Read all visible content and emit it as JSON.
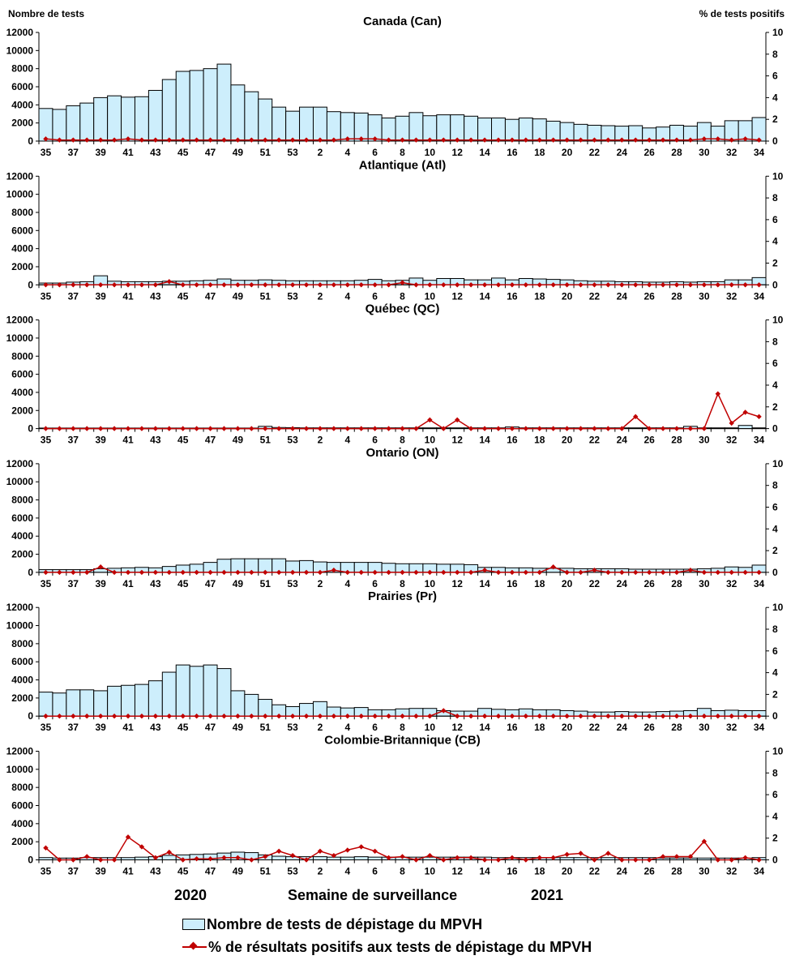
{
  "axis_titles": {
    "left": "Nombre de tests",
    "right": "% de tests positifs",
    "x": "Semaine de surveillance"
  },
  "years": [
    "2020",
    "2021"
  ],
  "legend": {
    "bars": "Nombre de tests de dépistage du MPVH",
    "line": "% de résultats positifs aux tests de dépistage du MPVH"
  },
  "colors": {
    "bar_fill": "#cdeefc",
    "bar_stroke": "#000000",
    "line": "#c00000"
  },
  "x_tick_labels": [
    "35",
    "37",
    "39",
    "41",
    "43",
    "45",
    "47",
    "49",
    "51",
    "53",
    "2",
    "4",
    "6",
    "8",
    "10",
    "12",
    "14",
    "16",
    "18",
    "20",
    "22",
    "24",
    "26",
    "28",
    "30",
    "32",
    "34"
  ],
  "chart_data": [
    {
      "type": "bar",
      "title": "Canada (Can)",
      "ylim": [
        0,
        12000
      ],
      "y2lim": [
        0,
        10
      ],
      "yticks": [
        0,
        2000,
        4000,
        6000,
        8000,
        10000,
        12000
      ],
      "y2ticks": [
        0,
        2,
        4,
        6,
        8,
        10
      ],
      "categories": [
        "35",
        "36",
        "37",
        "38",
        "39",
        "40",
        "41",
        "42",
        "43",
        "44",
        "45",
        "46",
        "47",
        "48",
        "49",
        "50",
        "51",
        "52",
        "53",
        "1",
        "2",
        "3",
        "4",
        "5",
        "6",
        "7",
        "8",
        "9",
        "10",
        "11",
        "12",
        "13",
        "14",
        "15",
        "16",
        "17",
        "18",
        "19",
        "20",
        "21",
        "22",
        "23",
        "24",
        "25",
        "26",
        "27",
        "28",
        "29",
        "30",
        "31",
        "32",
        "33",
        "34"
      ],
      "series": [
        {
          "name": "Nombre de tests de dépistage du MPVH",
          "axis": "left",
          "values": [
            3600,
            3500,
            3900,
            4200,
            4800,
            5000,
            4850,
            4900,
            5600,
            6800,
            7700,
            7800,
            8000,
            8500,
            6200,
            5450,
            4650,
            3750,
            3300,
            3750,
            3750,
            3250,
            3150,
            3100,
            2900,
            2550,
            2750,
            3150,
            2800,
            2900,
            2900,
            2750,
            2550,
            2550,
            2400,
            2550,
            2450,
            2200,
            2050,
            1850,
            1750,
            1700,
            1650,
            1700,
            1450,
            1550,
            1750,
            1650,
            2050,
            1650,
            2250,
            2250,
            2600
          ]
        },
        {
          "name": "% de résultats positifs aux tests de dépistage du MPVH",
          "axis": "right",
          "values": [
            0.2,
            0.1,
            0.1,
            0.1,
            0.1,
            0.1,
            0.2,
            0.1,
            0.1,
            0.1,
            0.1,
            0.1,
            0.1,
            0.1,
            0.1,
            0.1,
            0.1,
            0.1,
            0.1,
            0.1,
            0.1,
            0.1,
            0.2,
            0.2,
            0.2,
            0.1,
            0.1,
            0.1,
            0.1,
            0.1,
            0.1,
            0.1,
            0.1,
            0.1,
            0.1,
            0.1,
            0.1,
            0.1,
            0.1,
            0.1,
            0.1,
            0.1,
            0.1,
            0.1,
            0.1,
            0.1,
            0.1,
            0.1,
            0.2,
            0.2,
            0.1,
            0.2,
            0.1
          ]
        }
      ]
    },
    {
      "type": "bar",
      "title": "Atlantique (Atl)",
      "ylim": [
        0,
        12000
      ],
      "y2lim": [
        0,
        10
      ],
      "yticks": [
        0,
        2000,
        4000,
        6000,
        8000,
        10000,
        12000
      ],
      "y2ticks": [
        0,
        2,
        4,
        6,
        8,
        10
      ],
      "categories": [
        "35",
        "36",
        "37",
        "38",
        "39",
        "40",
        "41",
        "42",
        "43",
        "44",
        "45",
        "46",
        "47",
        "48",
        "49",
        "50",
        "51",
        "52",
        "53",
        "1",
        "2",
        "3",
        "4",
        "5",
        "6",
        "7",
        "8",
        "9",
        "10",
        "11",
        "12",
        "13",
        "14",
        "15",
        "16",
        "17",
        "18",
        "19",
        "20",
        "21",
        "22",
        "23",
        "24",
        "25",
        "26",
        "27",
        "28",
        "29",
        "30",
        "31",
        "32",
        "33",
        "34"
      ],
      "series": [
        {
          "name": "Nombre de tests de dépistage du MPVH",
          "axis": "left",
          "values": [
            200,
            200,
            300,
            350,
            1000,
            400,
            350,
            350,
            350,
            400,
            400,
            450,
            500,
            650,
            500,
            500,
            550,
            500,
            450,
            450,
            450,
            450,
            450,
            500,
            600,
            450,
            500,
            750,
            500,
            700,
            700,
            550,
            550,
            750,
            550,
            700,
            650,
            600,
            550,
            450,
            400,
            400,
            350,
            350,
            300,
            300,
            350,
            300,
            350,
            350,
            550,
            550,
            800
          ]
        },
        {
          "name": "% de résultats positifs aux tests de dépistage du MPVH",
          "axis": "right",
          "values": [
            0,
            0,
            0,
            0,
            0,
            0,
            0,
            0,
            0,
            0.3,
            0,
            0,
            0,
            0,
            0,
            0,
            0,
            0,
            0,
            0,
            0,
            0,
            0,
            0,
            0,
            0,
            0.2,
            0,
            0,
            0,
            0,
            0,
            0,
            0,
            0,
            0,
            0,
            0,
            0,
            0,
            0,
            0,
            0,
            0,
            0,
            0,
            0,
            0,
            0,
            0,
            0,
            0,
            0
          ]
        }
      ]
    },
    {
      "type": "bar",
      "title": "Québec (QC)",
      "ylim": [
        0,
        12000
      ],
      "y2lim": [
        0,
        10
      ],
      "yticks": [
        0,
        2000,
        4000,
        6000,
        8000,
        10000,
        12000
      ],
      "y2ticks": [
        0,
        2,
        4,
        6,
        8,
        10
      ],
      "categories": [
        "35",
        "36",
        "37",
        "38",
        "39",
        "40",
        "41",
        "42",
        "43",
        "44",
        "45",
        "46",
        "47",
        "48",
        "49",
        "50",
        "51",
        "52",
        "53",
        "1",
        "2",
        "3",
        "4",
        "5",
        "6",
        "7",
        "8",
        "9",
        "10",
        "11",
        "12",
        "13",
        "14",
        "15",
        "16",
        "17",
        "18",
        "19",
        "20",
        "21",
        "22",
        "23",
        "24",
        "25",
        "26",
        "27",
        "28",
        "29",
        "30",
        "31",
        "32",
        "33",
        "34"
      ],
      "series": [
        {
          "name": "Nombre de tests de dépistage du MPVH",
          "axis": "left",
          "values": [
            60,
            60,
            60,
            60,
            60,
            60,
            60,
            60,
            60,
            60,
            60,
            60,
            60,
            60,
            60,
            60,
            250,
            120,
            100,
            80,
            80,
            80,
            80,
            80,
            80,
            80,
            80,
            80,
            80,
            80,
            80,
            80,
            80,
            80,
            180,
            80,
            80,
            80,
            80,
            80,
            80,
            80,
            80,
            80,
            80,
            80,
            80,
            250,
            80,
            80,
            80,
            350,
            80
          ]
        },
        {
          "name": "% de résultats positifs aux tests de dépistage du MPVH",
          "axis": "right",
          "values": [
            0,
            0,
            0,
            0,
            0,
            0,
            0,
            0,
            0,
            0,
            0,
            0,
            0,
            0,
            0,
            0,
            0,
            0,
            0,
            0,
            0,
            0,
            0,
            0,
            0,
            0,
            0,
            0,
            0.8,
            0,
            0.8,
            0,
            0,
            0,
            0,
            0,
            0,
            0,
            0,
            0,
            0,
            0,
            0,
            1.1,
            0,
            0,
            0,
            0,
            0,
            3.2,
            0.5,
            1.5,
            1.1
          ]
        }
      ]
    },
    {
      "type": "bar",
      "title": "Ontario (ON)",
      "ylim": [
        0,
        12000
      ],
      "y2lim": [
        0,
        10
      ],
      "yticks": [
        0,
        2000,
        4000,
        6000,
        8000,
        10000,
        12000
      ],
      "y2ticks": [
        0,
        2,
        4,
        6,
        8,
        10
      ],
      "categories": [
        "35",
        "36",
        "37",
        "38",
        "39",
        "40",
        "41",
        "42",
        "43",
        "44",
        "45",
        "46",
        "47",
        "48",
        "49",
        "50",
        "51",
        "52",
        "53",
        "1",
        "2",
        "3",
        "4",
        "5",
        "6",
        "7",
        "8",
        "9",
        "10",
        "11",
        "12",
        "13",
        "14",
        "15",
        "16",
        "17",
        "18",
        "19",
        "20",
        "21",
        "22",
        "23",
        "24",
        "25",
        "26",
        "27",
        "28",
        "29",
        "30",
        "31",
        "32",
        "33",
        "34"
      ],
      "series": [
        {
          "name": "Nombre de tests de dépistage du MPVH",
          "axis": "left",
          "values": [
            300,
            300,
            300,
            300,
            400,
            450,
            500,
            550,
            500,
            650,
            800,
            900,
            1100,
            1450,
            1500,
            1500,
            1500,
            1500,
            1250,
            1300,
            1150,
            1100,
            1100,
            1100,
            1100,
            1000,
            950,
            950,
            950,
            900,
            900,
            850,
            550,
            550,
            500,
            500,
            450,
            450,
            450,
            400,
            400,
            400,
            400,
            350,
            350,
            350,
            350,
            350,
            400,
            450,
            600,
            550,
            800
          ]
        },
        {
          "name": "% de résultats positifs aux tests de dépistage du MPVH",
          "axis": "right",
          "values": [
            0,
            0,
            0,
            0,
            0.5,
            0,
            0,
            0,
            0,
            0,
            0,
            0,
            0,
            0,
            0,
            0,
            0,
            0,
            0,
            0,
            0,
            0.2,
            0,
            0,
            0,
            0,
            0,
            0,
            0,
            0,
            0,
            0,
            0.2,
            0,
            0,
            0,
            0,
            0.5,
            0,
            0,
            0.2,
            0,
            0,
            0,
            0,
            0,
            0,
            0.2,
            0,
            0,
            0,
            0,
            0
          ]
        }
      ]
    },
    {
      "type": "bar",
      "title": "Prairies (Pr)",
      "ylim": [
        0,
        12000
      ],
      "y2lim": [
        0,
        10
      ],
      "yticks": [
        0,
        2000,
        4000,
        6000,
        8000,
        10000,
        12000
      ],
      "y2ticks": [
        0,
        2,
        4,
        6,
        8,
        10
      ],
      "categories": [
        "35",
        "36",
        "37",
        "38",
        "39",
        "40",
        "41",
        "42",
        "43",
        "44",
        "45",
        "46",
        "47",
        "48",
        "49",
        "50",
        "51",
        "52",
        "53",
        "1",
        "2",
        "3",
        "4",
        "5",
        "6",
        "7",
        "8",
        "9",
        "10",
        "11",
        "12",
        "13",
        "14",
        "15",
        "16",
        "17",
        "18",
        "19",
        "20",
        "21",
        "22",
        "23",
        "24",
        "25",
        "26",
        "27",
        "28",
        "29",
        "30",
        "31",
        "32",
        "33",
        "34"
      ],
      "series": [
        {
          "name": "Nombre de tests de dépistage du MPVH",
          "axis": "left",
          "values": [
            2650,
            2550,
            2900,
            2900,
            2800,
            3300,
            3400,
            3500,
            3900,
            4850,
            5650,
            5500,
            5650,
            5250,
            2800,
            2400,
            1850,
            1250,
            1050,
            1400,
            1600,
            1000,
            900,
            950,
            700,
            700,
            800,
            850,
            850,
            600,
            550,
            550,
            850,
            750,
            700,
            800,
            700,
            700,
            600,
            550,
            450,
            450,
            500,
            450,
            450,
            500,
            550,
            600,
            850,
            600,
            650,
            600,
            600
          ]
        },
        {
          "name": "% de résultats positifs aux tests de dépistage du MPVH",
          "axis": "right",
          "values": [
            0,
            0,
            0,
            0,
            0,
            0,
            0,
            0,
            0,
            0,
            0,
            0,
            0,
            0,
            0,
            0,
            0,
            0,
            0,
            0,
            0,
            0,
            0,
            0,
            0,
            0,
            0,
            0,
            0,
            0.5,
            0,
            0,
            0,
            0,
            0,
            0,
            0,
            0,
            0,
            0,
            0,
            0,
            0,
            0,
            0,
            0,
            0,
            0,
            0,
            0,
            0,
            0,
            0
          ]
        }
      ]
    },
    {
      "type": "bar",
      "title": "Colombie-Britannique (CB)",
      "ylim": [
        0,
        12000
      ],
      "y2lim": [
        0,
        10
      ],
      "yticks": [
        0,
        2000,
        4000,
        6000,
        8000,
        10000,
        12000
      ],
      "y2ticks": [
        0,
        2,
        4,
        6,
        8,
        10
      ],
      "categories": [
        "35",
        "36",
        "37",
        "38",
        "39",
        "40",
        "41",
        "42",
        "43",
        "44",
        "45",
        "46",
        "47",
        "48",
        "49",
        "50",
        "51",
        "52",
        "53",
        "1",
        "2",
        "3",
        "4",
        "5",
        "6",
        "7",
        "8",
        "9",
        "10",
        "11",
        "12",
        "13",
        "14",
        "15",
        "16",
        "17",
        "18",
        "19",
        "20",
        "21",
        "22",
        "23",
        "24",
        "25",
        "26",
        "27",
        "28",
        "29",
        "30",
        "31",
        "32",
        "33",
        "34"
      ],
      "series": [
        {
          "name": "Nombre de tests de dépistage du MPVH",
          "axis": "left",
          "values": [
            250,
            200,
            200,
            250,
            250,
            250,
            250,
            300,
            350,
            500,
            550,
            600,
            650,
            750,
            850,
            800,
            550,
            400,
            350,
            350,
            350,
            300,
            300,
            350,
            300,
            300,
            300,
            300,
            300,
            300,
            300,
            300,
            300,
            250,
            250,
            250,
            250,
            250,
            250,
            250,
            250,
            250,
            250,
            250,
            250,
            200,
            200,
            200,
            200,
            200,
            200,
            200,
            250
          ]
        },
        {
          "name": "% de résultats positifs aux tests de dépistage du MPVH",
          "axis": "right",
          "values": [
            1.1,
            0,
            0,
            0.3,
            0,
            0,
            2.1,
            1.2,
            0.2,
            0.7,
            0,
            0.1,
            0.1,
            0.2,
            0.2,
            0,
            0.3,
            0.8,
            0.4,
            0,
            0.8,
            0.4,
            0.9,
            1.2,
            0.8,
            0.2,
            0.3,
            0,
            0.4,
            0,
            0.2,
            0.2,
            0,
            0,
            0.2,
            0,
            0.2,
            0.2,
            0.5,
            0.6,
            0,
            0.6,
            0,
            0,
            0,
            0.3,
            0.3,
            0.3,
            1.7,
            0,
            0,
            0.2,
            0
          ]
        }
      ]
    }
  ]
}
